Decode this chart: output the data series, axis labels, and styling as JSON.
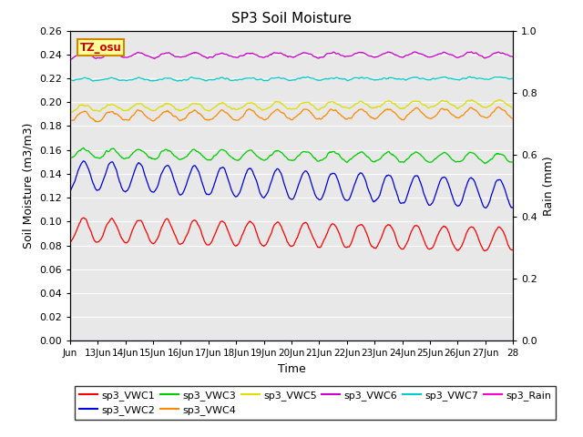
{
  "title": "SP3 Soil Moisture",
  "xlabel": "Time",
  "ylabel_left": "Soil Moisture (m3/m3)",
  "ylabel_right": "Rain (mm)",
  "ylim_left": [
    0.0,
    0.26
  ],
  "ylim_right": [
    0.0,
    1.0
  ],
  "xlim_days": 16,
  "bg_color": "#e8e8e8",
  "tz_label": "TZ_osu",
  "tz_box_color": "#ffff99",
  "tz_border_color": "#cc8800",
  "series_order": [
    "sp3_VWC1",
    "sp3_VWC2",
    "sp3_VWC3",
    "sp3_VWC4",
    "sp3_VWC5",
    "sp3_VWC6",
    "sp3_VWC7"
  ],
  "series": {
    "sp3_VWC1": {
      "color": "#ff0000",
      "base": 0.093,
      "amp": 0.01,
      "drift": -0.008,
      "noise": 0.001
    },
    "sp3_VWC2": {
      "color": "#0000dd",
      "base": 0.139,
      "amp": 0.012,
      "drift": -0.016,
      "noise": 0.001
    },
    "sp3_VWC3": {
      "color": "#00cc00",
      "base": 0.157,
      "amp": 0.004,
      "drift": -0.004,
      "noise": 0.001
    },
    "sp3_VWC4": {
      "color": "#ff8800",
      "base": 0.188,
      "amp": 0.004,
      "drift": 0.003,
      "noise": 0.001
    },
    "sp3_VWC5": {
      "color": "#dddd00",
      "base": 0.195,
      "amp": 0.003,
      "drift": 0.004,
      "noise": 0.001
    },
    "sp3_VWC6": {
      "color": "#cc00cc",
      "base": 0.239,
      "amp": 0.002,
      "drift": 0.001,
      "noise": 0.0008
    },
    "sp3_VWC7": {
      "color": "#00cccc",
      "base": 0.219,
      "amp": 0.001,
      "drift": 0.001,
      "noise": 0.0008
    }
  },
  "xtick_labels": [
    "Jun",
    "13Jun",
    "14Jun",
    "15Jun",
    "16Jun",
    "17Jun",
    "18Jun",
    "19Jun",
    "20Jun",
    "21Jun",
    "22Jun",
    "23Jun",
    "24Jun",
    "25Jun",
    "26Jun",
    "27Jun",
    "28"
  ],
  "ytick_left": [
    0.0,
    0.02,
    0.04,
    0.06,
    0.08,
    0.1,
    0.12,
    0.14,
    0.16,
    0.18,
    0.2,
    0.22,
    0.24,
    0.26
  ],
  "ytick_right": [
    0.0,
    0.2,
    0.4,
    0.6,
    0.8,
    1.0
  ],
  "legend_items": [
    {
      "label": "sp3_VWC1",
      "color": "#ff0000"
    },
    {
      "label": "sp3_VWC2",
      "color": "#0000dd"
    },
    {
      "label": "sp3_VWC3",
      "color": "#00cc00"
    },
    {
      "label": "sp3_VWC4",
      "color": "#ff8800"
    },
    {
      "label": "sp3_VWC5",
      "color": "#dddd00"
    },
    {
      "label": "sp3_VWC6",
      "color": "#cc00cc"
    },
    {
      "label": "sp3_VWC7",
      "color": "#00cccc"
    },
    {
      "label": "sp3_Rain",
      "color": "#ff00cc"
    }
  ]
}
